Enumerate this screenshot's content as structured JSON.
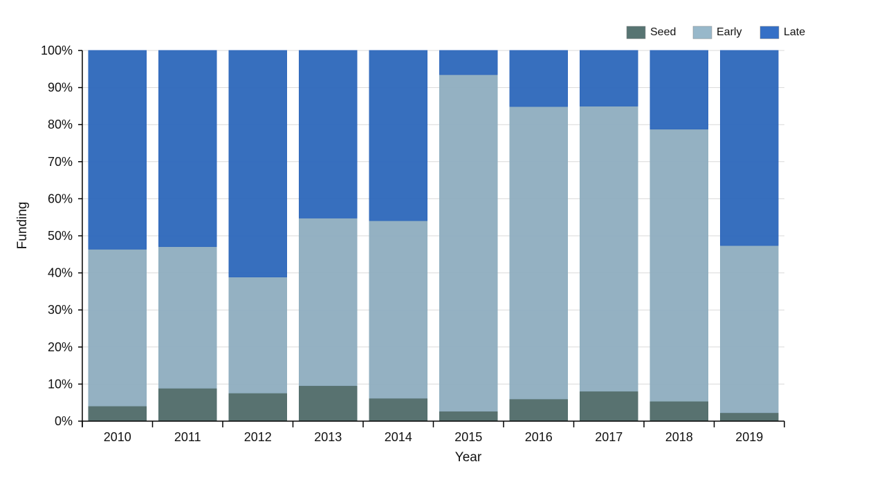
{
  "chart_data": {
    "type": "bar",
    "stacked": true,
    "normalized": true,
    "categories": [
      "2010",
      "2011",
      "2012",
      "2013",
      "2014",
      "2015",
      "2016",
      "2017",
      "2018",
      "2019"
    ],
    "series": [
      {
        "name": "Seed",
        "color": "#577472",
        "values": [
          4.1,
          8.9,
          7.6,
          9.6,
          6.2,
          2.7,
          6.0,
          8.1,
          5.4,
          2.3
        ]
      },
      {
        "name": "Early",
        "color": "#98b8ca",
        "values": [
          42.3,
          38.2,
          31.3,
          45.2,
          47.9,
          90.8,
          78.9,
          76.9,
          73.4,
          45.1
        ]
      },
      {
        "name": "Late",
        "color": "#346fc6",
        "values": [
          53.6,
          52.9,
          61.1,
          45.2,
          45.9,
          6.5,
          15.1,
          15.0,
          21.2,
          52.6
        ]
      }
    ],
    "xlabel": "Year",
    "ylabel": "Funding",
    "ylim": [
      0,
      100
    ],
    "yticks": [
      0,
      10,
      20,
      30,
      40,
      50,
      60,
      70,
      80,
      90,
      100
    ],
    "ytick_format": "percent",
    "grid": "horizontal",
    "legend": "top-right"
  }
}
